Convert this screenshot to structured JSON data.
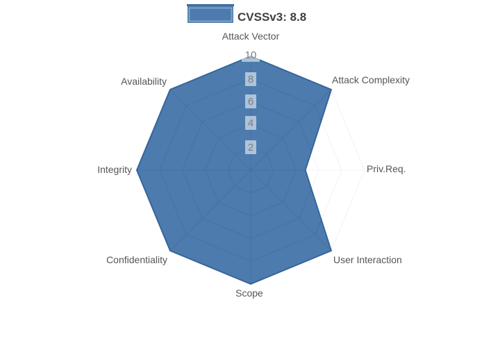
{
  "legend": {
    "label": "CVSSv3: 8.8"
  },
  "chart_data": {
    "type": "radar",
    "title": "",
    "categories": [
      "Attack Vector",
      "Attack Complexity",
      "Priv.Req.",
      "User Interaction",
      "Scope",
      "Confidentiality",
      "Integrity",
      "Availability"
    ],
    "series": [
      {
        "name": "CVSSv3: 8.8",
        "values": [
          10,
          10,
          4.8,
          10,
          10,
          10,
          10,
          10
        ]
      }
    ],
    "radial_ticks": [
      2,
      4,
      6,
      8,
      10
    ],
    "radial_range": [
      0,
      10
    ],
    "angular_start": "top",
    "direction": "clockwise",
    "grid": true,
    "legend_position": "top-center",
    "colors": {
      "fill": "#4d7bad",
      "line": "#35659a",
      "grid_inside": "#44699a",
      "grid_outside": "#f0f3f6",
      "axis_label": "#555555",
      "tick_label": "#7b7f84",
      "tick_box_bg": "rgba(255,255,255,0.55)",
      "legend_text": "#3f3f3f",
      "swatch_inner_border": "#7fa3c7"
    }
  }
}
